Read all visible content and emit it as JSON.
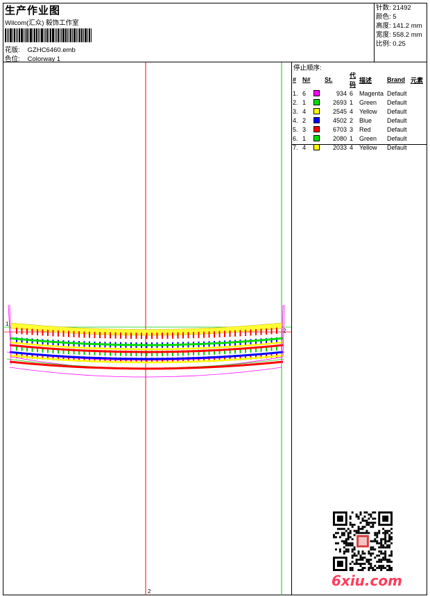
{
  "header": {
    "title": "生产作业图",
    "studio": "Wilcom(汇众) 毅饰工作室",
    "design_label": "花版:",
    "design_value": "GZHC6460.emb",
    "colorway_label": "色位:",
    "colorway_value": "Colorway 1"
  },
  "stats": [
    {
      "label": "针数:",
      "value": "21492"
    },
    {
      "label": "颜色:",
      "value": "5"
    },
    {
      "label": "高度:",
      "value": "141.2 mm"
    },
    {
      "label": "宽度:",
      "value": "558.2 mm"
    },
    {
      "label": "比例:",
      "value": "0.25"
    }
  ],
  "stop_sequence": {
    "title": "停止顺序:",
    "headers": [
      "#",
      "N#",
      "St.",
      "代码",
      "描述",
      "Brand",
      "元素"
    ],
    "rows": [
      {
        "idx": "1.",
        "n": "6",
        "color": "#ff00ff",
        "st": "934",
        "code": "6",
        "desc": "Magenta",
        "brand": "Default"
      },
      {
        "idx": "2.",
        "n": "1",
        "color": "#00dd00",
        "st": "2693",
        "code": "1",
        "desc": "Green",
        "brand": "Default"
      },
      {
        "idx": "3.",
        "n": "4",
        "color": "#ffff00",
        "st": "2545",
        "code": "4",
        "desc": "Yellow",
        "brand": "Default"
      },
      {
        "idx": "4.",
        "n": "2",
        "color": "#0000ff",
        "st": "4502",
        "code": "2",
        "desc": "Blue",
        "brand": "Default"
      },
      {
        "idx": "5.",
        "n": "3",
        "color": "#ff0000",
        "st": "6703",
        "code": "3",
        "desc": "Red",
        "brand": "Default"
      },
      {
        "idx": "6.",
        "n": "1",
        "color": "#00dd00",
        "st": "2080",
        "code": "1",
        "desc": "Green",
        "brand": "Default"
      },
      {
        "idx": "7.",
        "n": "4",
        "color": "#ffff00",
        "st": "2033",
        "code": "4",
        "desc": "Yellow",
        "brand": "Default"
      }
    ]
  },
  "design_markers": {
    "v_center": "2",
    "left": "1",
    "right": "2"
  },
  "logo": "6xiu.com"
}
